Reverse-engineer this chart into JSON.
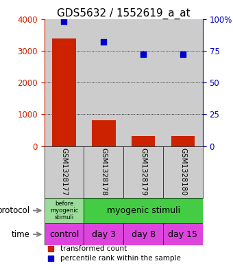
{
  "title": "GDS5632 / 1552619_a_at",
  "samples": [
    "GSM1328177",
    "GSM1328178",
    "GSM1328179",
    "GSM1328180"
  ],
  "bar_values": [
    3380,
    820,
    310,
    310
  ],
  "scatter_values": [
    98,
    82,
    72,
    72
  ],
  "bar_color": "#cc2200",
  "scatter_color": "#0000cc",
  "ylim_left": [
    0,
    4000
  ],
  "ylim_right": [
    0,
    100
  ],
  "yticks_left": [
    0,
    1000,
    2000,
    3000,
    4000
  ],
  "yticks_right": [
    0,
    25,
    50,
    75,
    100
  ],
  "yticklabels_right": [
    "0",
    "25",
    "50",
    "75",
    "100%"
  ],
  "protocol_label_left": "before\nmyogenic\nstimuli",
  "protocol_label_right": "myogenic stimuli",
  "protocol_color_left": "#99dd99",
  "protocol_color_right": "#44cc44",
  "time_labels": [
    "control",
    "day 3",
    "day 8",
    "day 15"
  ],
  "time_color": "#dd44dd",
  "legend_bar_label": "transformed count",
  "legend_scatter_label": "percentile rank within the sample",
  "bg_color": "#cccccc",
  "title_fontsize": 11,
  "left_tick_color": "#cc2200",
  "right_tick_color": "#0000cc"
}
